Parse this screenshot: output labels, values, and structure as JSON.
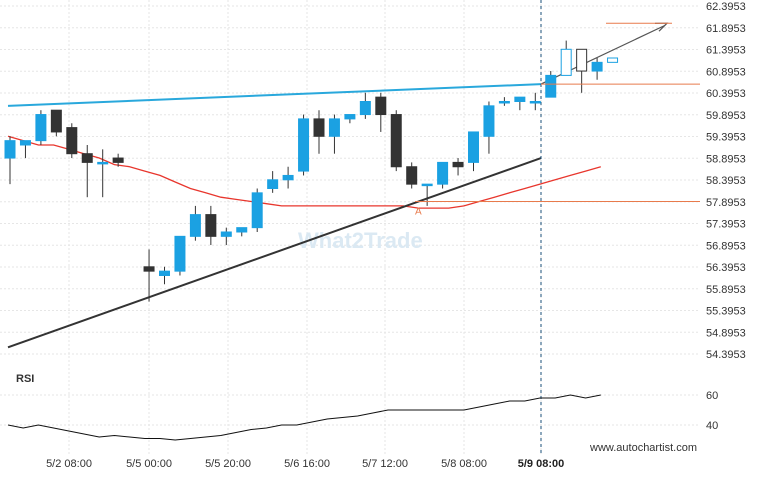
{
  "chart_data": {
    "type": "candlestick",
    "price_axis": {
      "ticks": [
        "62.3953",
        "61.8953",
        "61.3953",
        "60.8953",
        "60.3953",
        "59.8953",
        "59.3953",
        "58.8953",
        "58.3953",
        "57.8953",
        "57.3953",
        "56.8953",
        "56.3953",
        "55.8953",
        "55.3953",
        "54.8953",
        "54.3953"
      ],
      "range": [
        53.9,
        62.4
      ]
    },
    "time_axis": {
      "labels": [
        "5/2 08:00",
        "5/5 00:00",
        "5/5 20:00",
        "5/6 16:00",
        "5/7 12:00",
        "5/8 08:00",
        "5/9 08:00"
      ],
      "current_label": "5/9 08:00"
    },
    "candles": [
      {
        "o": 58.9,
        "h": 59.4,
        "l": 58.3,
        "c": 59.3
      },
      {
        "o": 59.2,
        "h": 59.3,
        "l": 58.9,
        "c": 59.3
      },
      {
        "o": 59.3,
        "h": 60.0,
        "l": 59.2,
        "c": 59.9
      },
      {
        "o": 60.0,
        "h": 60.0,
        "l": 59.4,
        "c": 59.5
      },
      {
        "o": 59.6,
        "h": 59.7,
        "l": 58.9,
        "c": 59.0
      },
      {
        "o": 59.0,
        "h": 59.2,
        "l": 58.0,
        "c": 58.8
      },
      {
        "o": 58.8,
        "h": 59.1,
        "l": 58.0,
        "c": 58.8
      },
      {
        "o": 58.9,
        "h": 59.0,
        "l": 58.7,
        "c": 58.8
      },
      {
        "o": null,
        "h": null,
        "l": null,
        "c": null
      },
      {
        "o": 56.4,
        "h": 56.8,
        "l": 55.6,
        "c": 56.3
      },
      {
        "o": 56.2,
        "h": 56.4,
        "l": 56.0,
        "c": 56.3
      },
      {
        "o": 56.3,
        "h": 57.1,
        "l": 56.2,
        "c": 57.1
      },
      {
        "o": 57.1,
        "h": 57.8,
        "l": 57.0,
        "c": 57.6
      },
      {
        "o": 57.6,
        "h": 57.8,
        "l": 56.9,
        "c": 57.1
      },
      {
        "o": 57.1,
        "h": 57.3,
        "l": 56.9,
        "c": 57.2
      },
      {
        "o": 57.2,
        "h": 57.3,
        "l": 57.1,
        "c": 57.3
      },
      {
        "o": 57.3,
        "h": 58.2,
        "l": 57.2,
        "c": 58.1
      },
      {
        "o": 58.2,
        "h": 58.6,
        "l": 58.1,
        "c": 58.4
      },
      {
        "o": 58.4,
        "h": 58.7,
        "l": 58.2,
        "c": 58.5
      },
      {
        "o": 58.6,
        "h": 59.9,
        "l": 58.5,
        "c": 59.8
      },
      {
        "o": 59.8,
        "h": 60.0,
        "l": 59.0,
        "c": 59.4
      },
      {
        "o": 59.4,
        "h": 59.9,
        "l": 59.0,
        "c": 59.8
      },
      {
        "o": 59.8,
        "h": 59.9,
        "l": 59.7,
        "c": 59.9
      },
      {
        "o": 59.9,
        "h": 60.4,
        "l": 59.8,
        "c": 60.2
      },
      {
        "o": 60.3,
        "h": 60.4,
        "l": 59.5,
        "c": 59.9
      },
      {
        "o": 59.9,
        "h": 60.0,
        "l": 58.6,
        "c": 58.7
      },
      {
        "o": 58.7,
        "h": 58.8,
        "l": 58.2,
        "c": 58.3
      },
      {
        "o": 58.3,
        "h": 58.3,
        "l": 57.8,
        "c": 58.3
      },
      {
        "o": 58.3,
        "h": 58.8,
        "l": 58.2,
        "c": 58.8
      },
      {
        "o": 58.8,
        "h": 58.9,
        "l": 58.5,
        "c": 58.7
      },
      {
        "o": 58.8,
        "h": 59.5,
        "l": 58.6,
        "c": 59.5
      },
      {
        "o": 59.4,
        "h": 60.2,
        "l": 59.0,
        "c": 60.1
      },
      {
        "o": 60.2,
        "h": 60.3,
        "l": 60.1,
        "c": 60.2
      },
      {
        "o": 60.2,
        "h": 60.3,
        "l": 60.0,
        "c": 60.3
      },
      {
        "o": 60.2,
        "h": 60.4,
        "l": 60.0,
        "c": 60.2
      },
      {
        "o": 60.3,
        "h": 60.9,
        "l": 60.3,
        "c": 60.8
      },
      {
        "o": 60.8,
        "h": 61.6,
        "l": 60.8,
        "c": 61.4
      },
      {
        "o": 61.4,
        "h": 61.4,
        "l": 60.4,
        "c": 60.9
      },
      {
        "o": 60.9,
        "h": 61.2,
        "l": 60.7,
        "c": 61.1
      },
      {
        "o": 61.1,
        "h": 61.2,
        "l": 61.1,
        "c": 61.2
      }
    ],
    "moving_average": [
      59.4,
      59.3,
      59.2,
      59.2,
      59.1,
      59.0,
      58.9,
      58.75,
      58.7,
      58.6,
      58.5,
      58.35,
      58.2,
      58.1,
      58.0,
      57.95,
      57.9,
      57.85,
      57.8,
      57.8,
      57.8,
      57.8,
      57.8,
      57.8,
      57.8,
      57.8,
      57.8,
      57.75,
      57.75,
      57.75,
      57.8,
      57.9,
      58.0,
      58.1,
      58.2,
      58.3,
      58.4,
      58.5,
      58.6,
      58.7
    ],
    "annotations": {
      "pattern_point_label": "A",
      "resistance_level": 60.6,
      "support_level": 57.9,
      "target_level": 62.0
    },
    "rsi": {
      "label": "RSI",
      "ticks": [
        "60",
        "40"
      ],
      "range": [
        30,
        70
      ],
      "values": [
        40,
        38,
        40,
        38,
        36,
        34,
        32,
        33,
        32,
        31,
        31,
        30,
        31,
        32,
        33,
        35,
        37,
        38,
        40,
        40,
        42,
        44,
        45,
        46,
        48,
        50,
        50,
        50,
        50,
        50,
        50,
        52,
        54,
        56,
        56,
        58,
        58,
        60,
        58,
        60
      ]
    },
    "watermark": "What2Trade",
    "footer_url": "www.autochartist.com",
    "colors": {
      "bull": "#1ba1e2",
      "bear": "#333333",
      "resistance_line": "#29a8dc",
      "support_line": "#333333",
      "moving_average": "#e8362d",
      "level_line": "#e87a4c",
      "forecast_arrow": "#555555",
      "current_line": "#1a4f78"
    }
  }
}
